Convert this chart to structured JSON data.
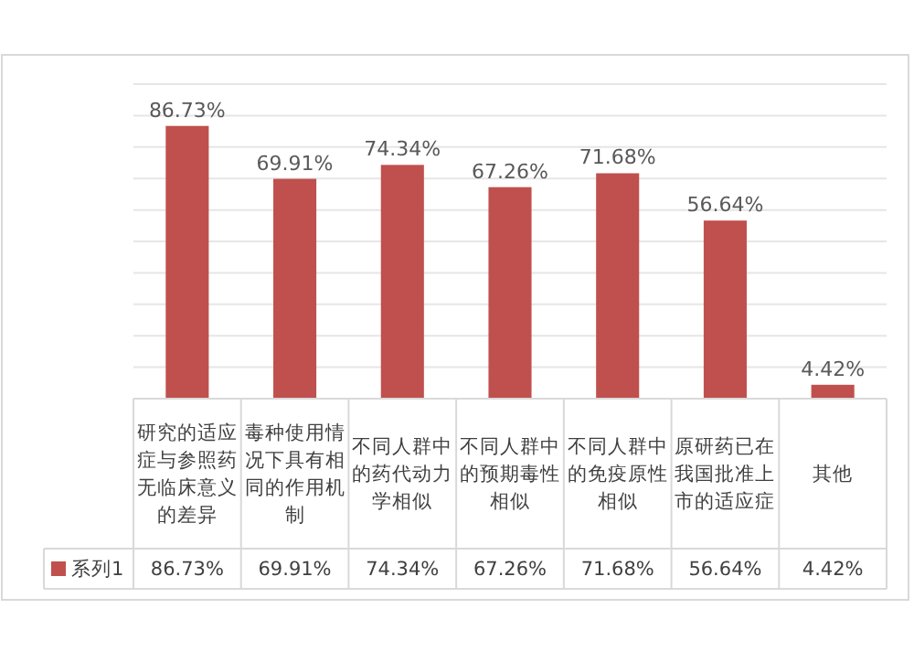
{
  "chart_data": {
    "type": "bar",
    "categories": [
      "研究的适应症与参照药无临床意义的差异",
      "毒种使用情况下具有相同的作用机制",
      "不同人群中的药代动力学相似",
      "不同人群中的预期毒性相似",
      "不同人群中的免疫原性相似",
      "原研药已在我国批准上市的适应症",
      "其他"
    ],
    "series": [
      {
        "name": "系列1",
        "color": "#c0504d",
        "values": [
          86.73,
          69.91,
          74.34,
          67.26,
          71.68,
          56.64,
          4.42
        ],
        "value_labels": [
          "86.73%",
          "69.91%",
          "74.34%",
          "67.26%",
          "71.68%",
          "56.64%",
          "4.42%"
        ]
      }
    ],
    "grid": "y",
    "tick_labels": "x"
  }
}
